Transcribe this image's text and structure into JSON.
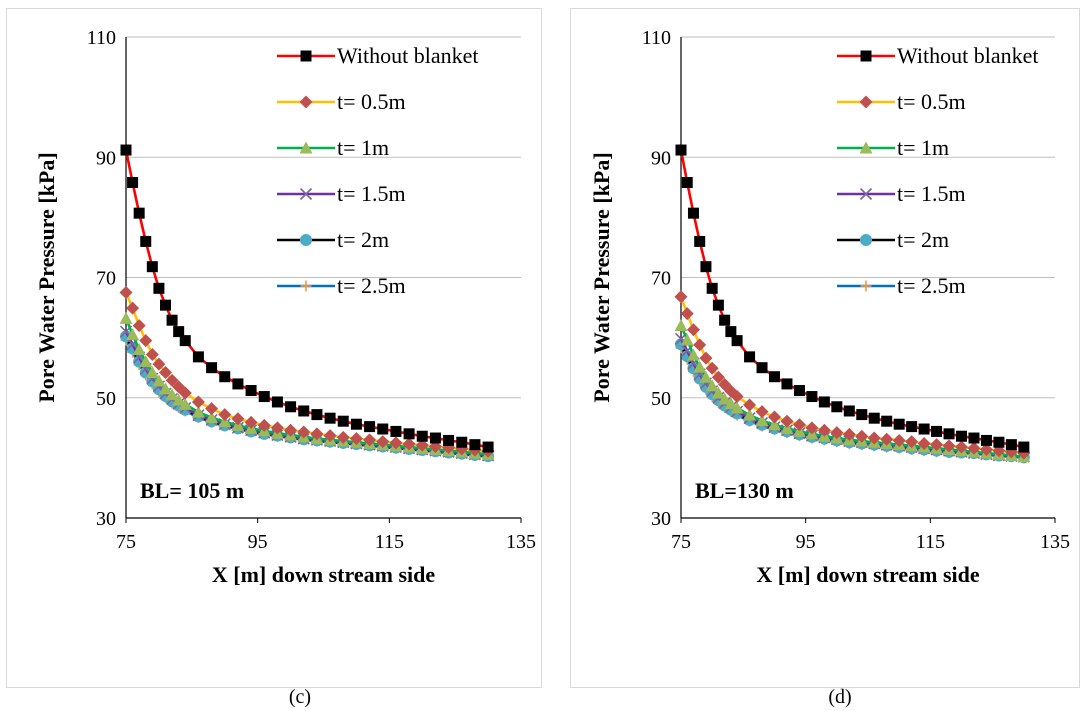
{
  "chart_data": [
    {
      "type": "line",
      "panel_label": "(c)",
      "annotation": "BL= 105 m",
      "xlabel": "X [m] down stream side",
      "ylabel": "Pore Water Pressure [kPa]",
      "xlim": [
        75,
        135
      ],
      "ylim": [
        30,
        110
      ],
      "xticks": [
        "75",
        "95",
        "115",
        "135"
      ],
      "yticks": [
        "30",
        "50",
        "70",
        "90",
        "110"
      ],
      "grid": "horizontal",
      "legend_position": "top-right",
      "x": [
        75,
        76,
        77,
        78,
        79,
        80,
        81,
        82,
        83,
        84,
        86,
        88,
        90,
        92,
        94,
        96,
        98,
        100,
        102,
        104,
        106,
        108,
        110,
        112,
        114,
        116,
        118,
        120,
        122,
        124,
        126,
        128,
        130
      ],
      "series": [
        {
          "name": "Without blanket",
          "color": "#ff0000",
          "marker": "square",
          "marker_color": "#000000",
          "values": [
            91.2,
            85.8,
            80.7,
            76.0,
            71.8,
            68.2,
            65.4,
            62.9,
            61.0,
            59.5,
            56.8,
            55.0,
            53.5,
            52.3,
            51.2,
            50.2,
            49.3,
            48.5,
            47.8,
            47.2,
            46.6,
            46.1,
            45.6,
            45.2,
            44.8,
            44.4,
            44.0,
            43.6,
            43.3,
            42.9,
            42.6,
            42.2,
            41.8
          ]
        },
        {
          "name": "t= 0.5m",
          "color": "#ffc000",
          "marker": "diamond",
          "marker_color": "#c0504d",
          "values": [
            67.5,
            64.9,
            62.0,
            59.5,
            57.2,
            55.6,
            54.2,
            52.9,
            51.8,
            50.8,
            49.3,
            48.2,
            47.2,
            46.5,
            45.9,
            45.4,
            45.0,
            44.6,
            44.3,
            44.0,
            43.7,
            43.4,
            43.2,
            43.0,
            42.7,
            42.5,
            42.3,
            42.1,
            41.9,
            41.7,
            41.5,
            41.3,
            41.1
          ]
        },
        {
          "name": "t= 1m",
          "color": "#00b050",
          "marker": "triangle",
          "marker_color": "#9bbb59",
          "values": [
            63.2,
            60.5,
            58.0,
            56.0,
            54.2,
            52.8,
            51.5,
            50.5,
            49.6,
            48.9,
            47.6,
            46.7,
            46.0,
            45.4,
            44.9,
            44.5,
            44.1,
            43.8,
            43.5,
            43.2,
            43.0,
            42.8,
            42.6,
            42.4,
            42.2,
            42.0,
            41.8,
            41.6,
            41.4,
            41.2,
            41.0,
            40.8,
            40.6
          ]
        },
        {
          "name": "t= 1.5m",
          "color": "#7030a0",
          "marker": "x",
          "marker_color": "#8064a2",
          "values": [
            61.0,
            58.9,
            56.7,
            54.8,
            53.2,
            51.9,
            50.7,
            49.8,
            49.0,
            48.3,
            47.1,
            46.3,
            45.6,
            45.0,
            44.6,
            44.2,
            43.8,
            43.5,
            43.2,
            43.0,
            42.8,
            42.6,
            42.4,
            42.2,
            42.0,
            41.8,
            41.6,
            41.4,
            41.2,
            41.0,
            40.8,
            40.6,
            40.4
          ]
        },
        {
          "name": "t= 2m",
          "color": "#000000",
          "marker": "circle",
          "marker_color": "#4bacc6",
          "values": [
            60.2,
            58.2,
            56.0,
            54.2,
            52.7,
            51.4,
            50.3,
            49.4,
            48.7,
            48.0,
            46.9,
            46.1,
            45.4,
            44.9,
            44.4,
            44.0,
            43.7,
            43.4,
            43.1,
            42.9,
            42.7,
            42.5,
            42.3,
            42.1,
            41.9,
            41.7,
            41.5,
            41.3,
            41.1,
            40.9,
            40.7,
            40.5,
            40.3
          ]
        },
        {
          "name": "t= 2.5m",
          "color": "#0070c0",
          "marker": "plus",
          "marker_color": "#f79646",
          "values": [
            59.6,
            57.6,
            55.5,
            53.8,
            52.3,
            51.0,
            50.0,
            49.1,
            48.4,
            47.8,
            46.7,
            45.9,
            45.3,
            44.8,
            44.3,
            43.9,
            43.6,
            43.3,
            43.0,
            42.8,
            42.6,
            42.4,
            42.2,
            42.0,
            41.8,
            41.6,
            41.4,
            41.2,
            41.0,
            40.8,
            40.6,
            40.4,
            40.2
          ]
        }
      ]
    },
    {
      "type": "line",
      "panel_label": "(d)",
      "annotation": "BL=130 m",
      "xlabel": "X [m] down stream side",
      "ylabel": "Pore Water Pressure [kPa]",
      "xlim": [
        75,
        135
      ],
      "ylim": [
        30,
        110
      ],
      "xticks": [
        "75",
        "95",
        "115",
        "135"
      ],
      "yticks": [
        "30",
        "50",
        "70",
        "90",
        "110"
      ],
      "grid": "horizontal",
      "legend_position": "top-right",
      "x": [
        75,
        76,
        77,
        78,
        79,
        80,
        81,
        82,
        83,
        84,
        86,
        88,
        90,
        92,
        94,
        96,
        98,
        100,
        102,
        104,
        106,
        108,
        110,
        112,
        114,
        116,
        118,
        120,
        122,
        124,
        126,
        128,
        130
      ],
      "series": [
        {
          "name": "Without blanket",
          "color": "#ff0000",
          "marker": "square",
          "marker_color": "#000000",
          "values": [
            91.2,
            85.8,
            80.7,
            76.0,
            71.8,
            68.2,
            65.4,
            62.9,
            61.0,
            59.5,
            56.8,
            55.0,
            53.5,
            52.3,
            51.2,
            50.2,
            49.3,
            48.5,
            47.8,
            47.2,
            46.6,
            46.1,
            45.6,
            45.2,
            44.8,
            44.4,
            44.0,
            43.6,
            43.3,
            42.9,
            42.6,
            42.2,
            41.8
          ]
        },
        {
          "name": "t= 0.5m",
          "color": "#ffc000",
          "marker": "diamond",
          "marker_color": "#c0504d",
          "values": [
            66.8,
            64.0,
            61.3,
            58.8,
            56.6,
            54.9,
            53.4,
            52.2,
            51.1,
            50.2,
            48.8,
            47.7,
            46.8,
            46.1,
            45.5,
            45.0,
            44.6,
            44.2,
            43.9,
            43.6,
            43.3,
            43.1,
            42.9,
            42.7,
            42.4,
            42.2,
            42.0,
            41.8,
            41.6,
            41.4,
            41.2,
            41.0,
            40.8
          ]
        },
        {
          "name": "t= 1m",
          "color": "#00b050",
          "marker": "triangle",
          "marker_color": "#9bbb59",
          "values": [
            62.0,
            59.6,
            57.1,
            55.1,
            53.4,
            52.0,
            50.8,
            49.8,
            49.0,
            48.3,
            47.1,
            46.2,
            45.5,
            44.9,
            44.4,
            44.0,
            43.6,
            43.3,
            43.0,
            42.8,
            42.6,
            42.4,
            42.2,
            42.0,
            41.8,
            41.6,
            41.4,
            41.2,
            41.0,
            40.8,
            40.6,
            40.4,
            40.2
          ]
        },
        {
          "name": "t= 1.5m",
          "color": "#7030a0",
          "marker": "x",
          "marker_color": "#8064a2",
          "values": [
            59.8,
            57.8,
            55.7,
            53.9,
            52.4,
            51.1,
            50.0,
            49.1,
            48.4,
            47.7,
            46.6,
            45.8,
            45.1,
            44.6,
            44.1,
            43.7,
            43.4,
            43.1,
            42.8,
            42.6,
            42.4,
            42.2,
            42.0,
            41.8,
            41.6,
            41.4,
            41.2,
            41.0,
            40.8,
            40.6,
            40.4,
            40.3,
            40.2
          ]
        },
        {
          "name": "t= 2m",
          "color": "#000000",
          "marker": "circle",
          "marker_color": "#4bacc6",
          "values": [
            58.9,
            56.9,
            54.9,
            53.2,
            51.8,
            50.6,
            49.6,
            48.7,
            48.0,
            47.4,
            46.3,
            45.5,
            44.9,
            44.4,
            43.9,
            43.5,
            43.2,
            42.9,
            42.6,
            42.4,
            42.2,
            42.0,
            41.8,
            41.6,
            41.4,
            41.2,
            41.0,
            40.9,
            40.8,
            40.6,
            40.4,
            40.3,
            40.1
          ]
        },
        {
          "name": "t= 2.5m",
          "color": "#0070c0",
          "marker": "plus",
          "marker_color": "#f79646",
          "values": [
            58.3,
            56.4,
            54.4,
            52.8,
            51.4,
            50.2,
            49.2,
            48.4,
            47.7,
            47.1,
            46.1,
            45.3,
            44.7,
            44.2,
            43.7,
            43.3,
            43.0,
            42.7,
            42.4,
            42.2,
            42.0,
            41.8,
            41.6,
            41.4,
            41.2,
            41.0,
            40.9,
            40.8,
            40.7,
            40.5,
            40.3,
            40.2,
            40.0
          ]
        }
      ]
    }
  ]
}
